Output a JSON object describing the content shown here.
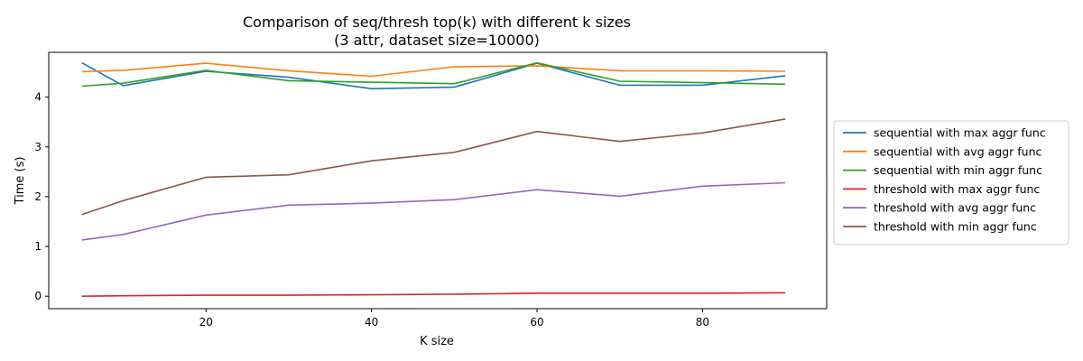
{
  "chart_data": {
    "type": "line",
    "title": "Comparison of seq/thresh top(k) with different k sizes",
    "subtitle": "(3 attr, dataset size=10000)",
    "xlabel": "K size",
    "ylabel": "Time (s)",
    "xlim": [
      1,
      95
    ],
    "ylim": [
      -0.25,
      4.9
    ],
    "xticks": [
      20,
      40,
      60,
      80
    ],
    "yticks": [
      0,
      1,
      2,
      3,
      4
    ],
    "grid": false,
    "legend_position": "center-right-outside",
    "x": [
      5,
      10,
      20,
      30,
      40,
      50,
      60,
      70,
      80,
      90
    ],
    "series": [
      {
        "name": "sequential with max aggr func",
        "color": "#1f77b4",
        "values": [
          4.69,
          4.23,
          4.52,
          4.4,
          4.17,
          4.2,
          4.68,
          4.24,
          4.24,
          4.43
        ]
      },
      {
        "name": "sequential with avg aggr func",
        "color": "#ff7f0e",
        "values": [
          4.51,
          4.54,
          4.68,
          4.53,
          4.42,
          4.61,
          4.63,
          4.53,
          4.53,
          4.52
        ]
      },
      {
        "name": "sequential with min aggr func",
        "color": "#2ca02c",
        "values": [
          4.22,
          4.28,
          4.54,
          4.33,
          4.3,
          4.27,
          4.69,
          4.32,
          4.29,
          4.26
        ]
      },
      {
        "name": "threshold with max aggr func",
        "color": "#d62728",
        "values": [
          0.0,
          0.01,
          0.02,
          0.02,
          0.03,
          0.04,
          0.06,
          0.06,
          0.06,
          0.07
        ]
      },
      {
        "name": "threshold with avg aggr func",
        "color": "#9467bd",
        "values": [
          1.13,
          1.24,
          1.63,
          1.83,
          1.87,
          1.94,
          2.14,
          2.01,
          2.21,
          2.28
        ]
      },
      {
        "name": "threshold with min aggr func",
        "color": "#8c564b",
        "values": [
          1.64,
          1.92,
          2.39,
          2.44,
          2.72,
          2.89,
          3.31,
          3.11,
          3.28,
          3.56
        ]
      }
    ]
  }
}
